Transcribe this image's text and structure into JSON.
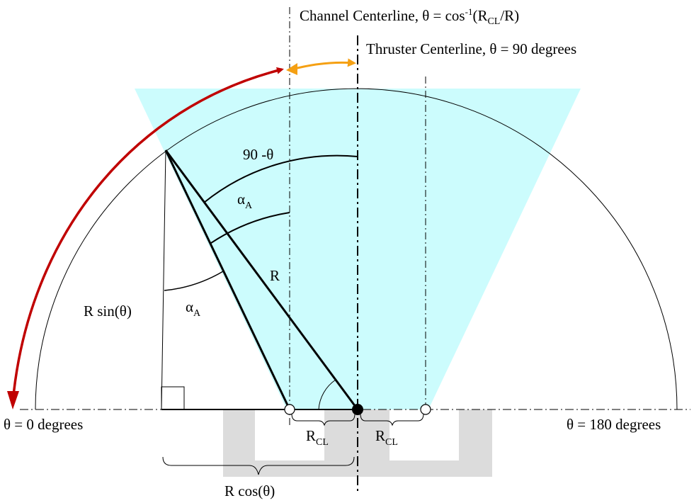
{
  "colors": {
    "cone_fill": "#ccfcfd",
    "channel_fill": "#dcdcdc",
    "red_arrow": "#c00000",
    "orange_arrow": "#f5a013",
    "line": "#000000"
  },
  "labels": {
    "channel_centerline": {
      "prefix": "Channel Centerline, θ = cos",
      "sup": "-1",
      "paren_open": "(R",
      "sub": "CL",
      "suffix": "/R)"
    },
    "thruster_centerline": "Thruster Centerline, θ = 90 degrees",
    "theta_zero": "θ = 0 degrees",
    "theta_180": "θ = 180 degrees",
    "ninety_minus_theta": "90 -θ",
    "alpha_upper": {
      "base": "α",
      "sub": "A"
    },
    "alpha_lower": {
      "base": "α",
      "sub": "A"
    },
    "r_label": "R",
    "r_sin": "R sin(θ)",
    "r_cos": "R cos(θ)",
    "rcl_left": {
      "base": "R",
      "sub": "CL"
    },
    "rcl_right": {
      "base": "R",
      "sub": "CL"
    }
  }
}
